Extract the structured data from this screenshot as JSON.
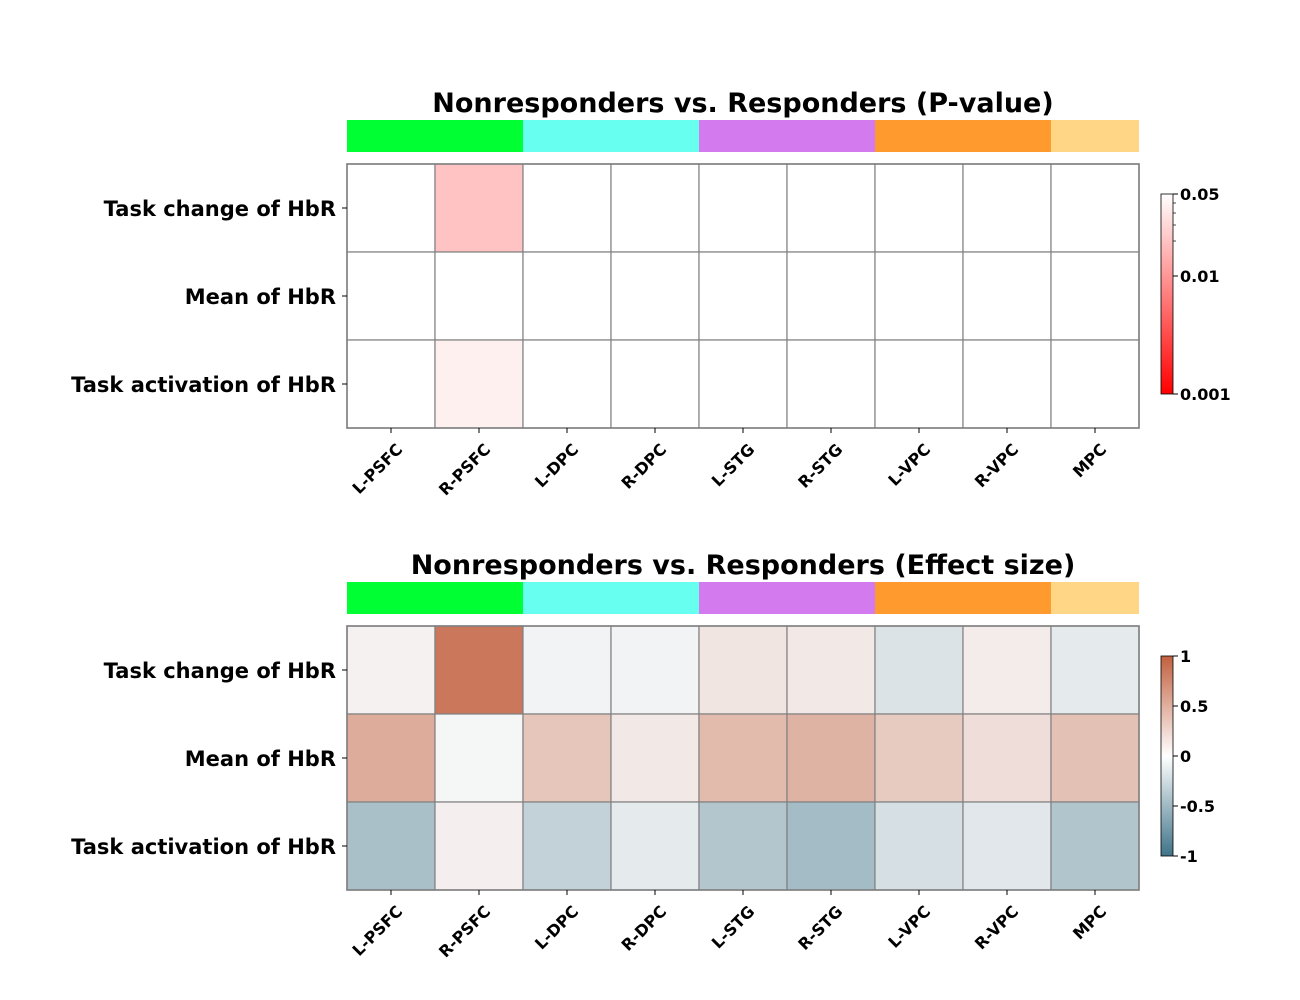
{
  "chart_data": [
    {
      "type": "heatmap",
      "title": "Nonresponders vs. Responders (P-value)",
      "rows": [
        "Task change of HbR",
        "Mean of HbR",
        "Task activation of HbR"
      ],
      "columns": [
        "L-PSFC",
        "R-PSFC",
        "L-DPC",
        "R-DPC",
        "L-STG",
        "R-STG",
        "L-VPC",
        "R-VPC",
        "MPC"
      ],
      "values": [
        [
          null,
          0.02,
          null,
          null,
          null,
          null,
          null,
          null,
          null
        ],
        [
          null,
          null,
          null,
          null,
          null,
          null,
          null,
          null,
          null
        ],
        [
          null,
          0.04,
          null,
          null,
          null,
          null,
          null,
          null,
          null
        ]
      ],
      "colorbar": {
        "scale": "log",
        "range": [
          0.001,
          0.05
        ],
        "ticks": [
          "0.05",
          "0.01",
          "0.001"
        ],
        "colors": [
          "#ff0000",
          "#ffffff"
        ]
      },
      "group_bar": [
        {
          "color": "#00ff33",
          "span": 2
        },
        {
          "color": "#66fff0",
          "span": 2
        },
        {
          "color": "#d37bee",
          "span": 2
        },
        {
          "color": "#ff9a2e",
          "span": 2
        },
        {
          "color": "#ffd685",
          "span": 1
        }
      ]
    },
    {
      "type": "heatmap",
      "title": "Nonresponders vs. Responders (Effect size)",
      "rows": [
        "Task change of HbR",
        "Mean of HbR",
        "Task activation of HbR"
      ],
      "columns": [
        "L-PSFC",
        "R-PSFC",
        "L-DPC",
        "R-DPC",
        "L-STG",
        "R-STG",
        "L-VPC",
        "R-VPC",
        "MPC"
      ],
      "values": [
        [
          0.04,
          0.85,
          -0.03,
          -0.03,
          0.12,
          0.1,
          -0.15,
          0.07,
          -0.1
        ],
        [
          0.5,
          -0.01,
          0.33,
          0.1,
          0.4,
          0.45,
          0.3,
          0.17,
          0.36
        ],
        [
          -0.42,
          0.05,
          -0.28,
          -0.1,
          -0.37,
          -0.45,
          -0.18,
          -0.12,
          -0.38
        ]
      ],
      "colorbar": {
        "scale": "linear",
        "range": [
          -1,
          1
        ],
        "ticks": [
          "1",
          "0.5",
          "0",
          "-0.5",
          "-1"
        ],
        "colors": [
          "#3f7389",
          "#ffffff",
          "#c2603f"
        ]
      },
      "group_bar": [
        {
          "color": "#00ff33",
          "span": 2
        },
        {
          "color": "#66fff0",
          "span": 2
        },
        {
          "color": "#d37bee",
          "span": 2
        },
        {
          "color": "#ff9a2e",
          "span": 2
        },
        {
          "color": "#ffd685",
          "span": 1
        }
      ]
    }
  ]
}
